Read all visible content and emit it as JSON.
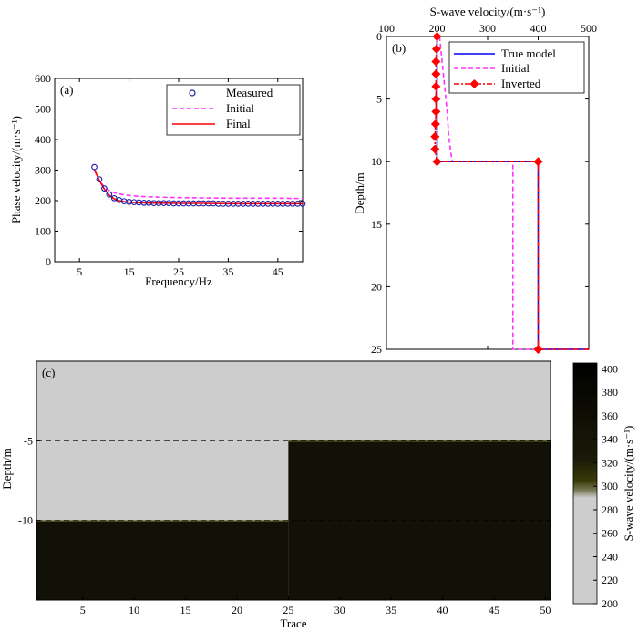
{
  "chart_data": [
    {
      "panel": "(a)",
      "type": "line",
      "xlabel": "Frequency/Hz",
      "ylabel": "Phase velocity/(m·s⁻¹)",
      "xlim": [
        0,
        50
      ],
      "ylim": [
        0,
        600
      ],
      "xticks": [
        5,
        15,
        25,
        35,
        45
      ],
      "yticks": [
        0,
        100,
        200,
        300,
        400,
        500,
        600
      ],
      "legend_position": "top-right",
      "legend": [
        "Measured",
        "Initial",
        "Final"
      ],
      "series": [
        {
          "name": "Measured",
          "style": "circle-markers",
          "color": "#1a1aa8",
          "x": [
            8,
            9,
            10,
            11,
            12,
            13,
            14,
            15,
            16,
            17,
            18,
            19,
            20,
            21,
            22,
            23,
            24,
            25,
            26,
            27,
            28,
            29,
            30,
            31,
            32,
            33,
            34,
            35,
            36,
            37,
            38,
            39,
            40,
            41,
            42,
            43,
            44,
            45,
            46,
            47,
            48,
            49,
            50
          ],
          "y": [
            310,
            270,
            240,
            220,
            208,
            202,
            198,
            196,
            195,
            194,
            193,
            193,
            192,
            192,
            192,
            192,
            191,
            191,
            191,
            191,
            191,
            191,
            191,
            191,
            191,
            190,
            190,
            190,
            190,
            190,
            190,
            190,
            190,
            190,
            190,
            190,
            190,
            190,
            190,
            190,
            190,
            190,
            190
          ]
        },
        {
          "name": "Initial",
          "style": "dashed",
          "color": "#ff33ff",
          "x": [
            8,
            9,
            10,
            11,
            12,
            13,
            14,
            15,
            17,
            20,
            25,
            30,
            35,
            40,
            45,
            50
          ],
          "y": [
            300,
            265,
            245,
            233,
            226,
            222,
            219,
            217,
            214,
            212,
            210,
            209,
            208,
            208,
            208,
            207
          ]
        },
        {
          "name": "Final",
          "style": "solid",
          "color": "#ff0000",
          "x": [
            8,
            9,
            10,
            11,
            12,
            13,
            14,
            15,
            17,
            20,
            25,
            30,
            35,
            40,
            45,
            50
          ],
          "y": [
            302,
            266,
            238,
            218,
            206,
            200,
            197,
            195,
            193,
            192,
            191,
            191,
            190,
            190,
            190,
            190
          ]
        }
      ]
    },
    {
      "panel": "(b)",
      "type": "line",
      "xlabel": "S-wave velocity/(m·s⁻¹)",
      "ylabel": "Depth/m",
      "xlim": [
        100,
        500
      ],
      "ylim": [
        0,
        25
      ],
      "y_inverted": true,
      "x_axis_position": "top",
      "xticks": [
        100,
        200,
        300,
        400,
        500
      ],
      "yticks": [
        0,
        5,
        10,
        15,
        20,
        25
      ],
      "legend_position": "top-right",
      "legend": [
        "True model",
        "Initial",
        "Inverted"
      ],
      "series": [
        {
          "name": "True model",
          "style": "solid",
          "color": "#0000ff",
          "points": [
            [
              200,
              0
            ],
            [
              200,
              10
            ],
            [
              400,
              10
            ],
            [
              400,
              25
            ],
            [
              500,
              25
            ]
          ]
        },
        {
          "name": "Initial",
          "style": "dashed",
          "color": "#ff33ff",
          "points": [
            [
              205,
              0
            ],
            [
              210,
              2
            ],
            [
              215,
              4
            ],
            [
              220,
              6
            ],
            [
              223,
              8
            ],
            [
              230,
              10
            ],
            [
              350,
              10
            ],
            [
              350,
              25
            ],
            [
              500,
              25
            ]
          ]
        },
        {
          "name": "Inverted",
          "style": "dash-dot-diamond",
          "color": "#ff0000",
          "points": [
            [
              200,
              0
            ],
            [
              199,
              1
            ],
            [
              198,
              2
            ],
            [
              198,
              3
            ],
            [
              198,
              4
            ],
            [
              198,
              5
            ],
            [
              198,
              6
            ],
            [
              197,
              7
            ],
            [
              196,
              8
            ],
            [
              196,
              9
            ],
            [
              200,
              10
            ],
            [
              400,
              10
            ],
            [
              400,
              25
            ],
            [
              500,
              25
            ]
          ],
          "markers": [
            [
              200,
              0
            ],
            [
              199,
              1
            ],
            [
              198,
              2
            ],
            [
              198,
              3
            ],
            [
              198,
              4
            ],
            [
              198,
              5
            ],
            [
              198,
              6
            ],
            [
              197,
              7
            ],
            [
              196,
              8
            ],
            [
              196,
              9
            ],
            [
              200,
              10
            ],
            [
              400,
              10
            ],
            [
              400,
              25
            ]
          ]
        }
      ]
    },
    {
      "panel": "(c)",
      "type": "heatmap",
      "xlabel": "Trace",
      "ylabel": "Depth/m",
      "xlim": [
        1,
        50
      ],
      "ylim": [
        0,
        -15
      ],
      "xticks": [
        5,
        10,
        15,
        20,
        25,
        30,
        35,
        40,
        45,
        50
      ],
      "yticks": [
        -5,
        -10
      ],
      "ytick_labels": [
        "-5",
        "-10"
      ],
      "interfaces": [
        -5,
        -10
      ],
      "layers": [
        {
          "traces": [
            1,
            25
          ],
          "top_depth": -10,
          "velocity": 400
        },
        {
          "traces": [
            25,
            50
          ],
          "top_depth": -5,
          "velocity": 400
        }
      ],
      "background_velocity": 200,
      "colorbar": {
        "label": "S-wave velocity/(m·s⁻¹)",
        "range": [
          200,
          405
        ],
        "ticks": [
          200,
          220,
          240,
          260,
          280,
          300,
          320,
          340,
          360,
          380,
          400
        ]
      }
    }
  ]
}
